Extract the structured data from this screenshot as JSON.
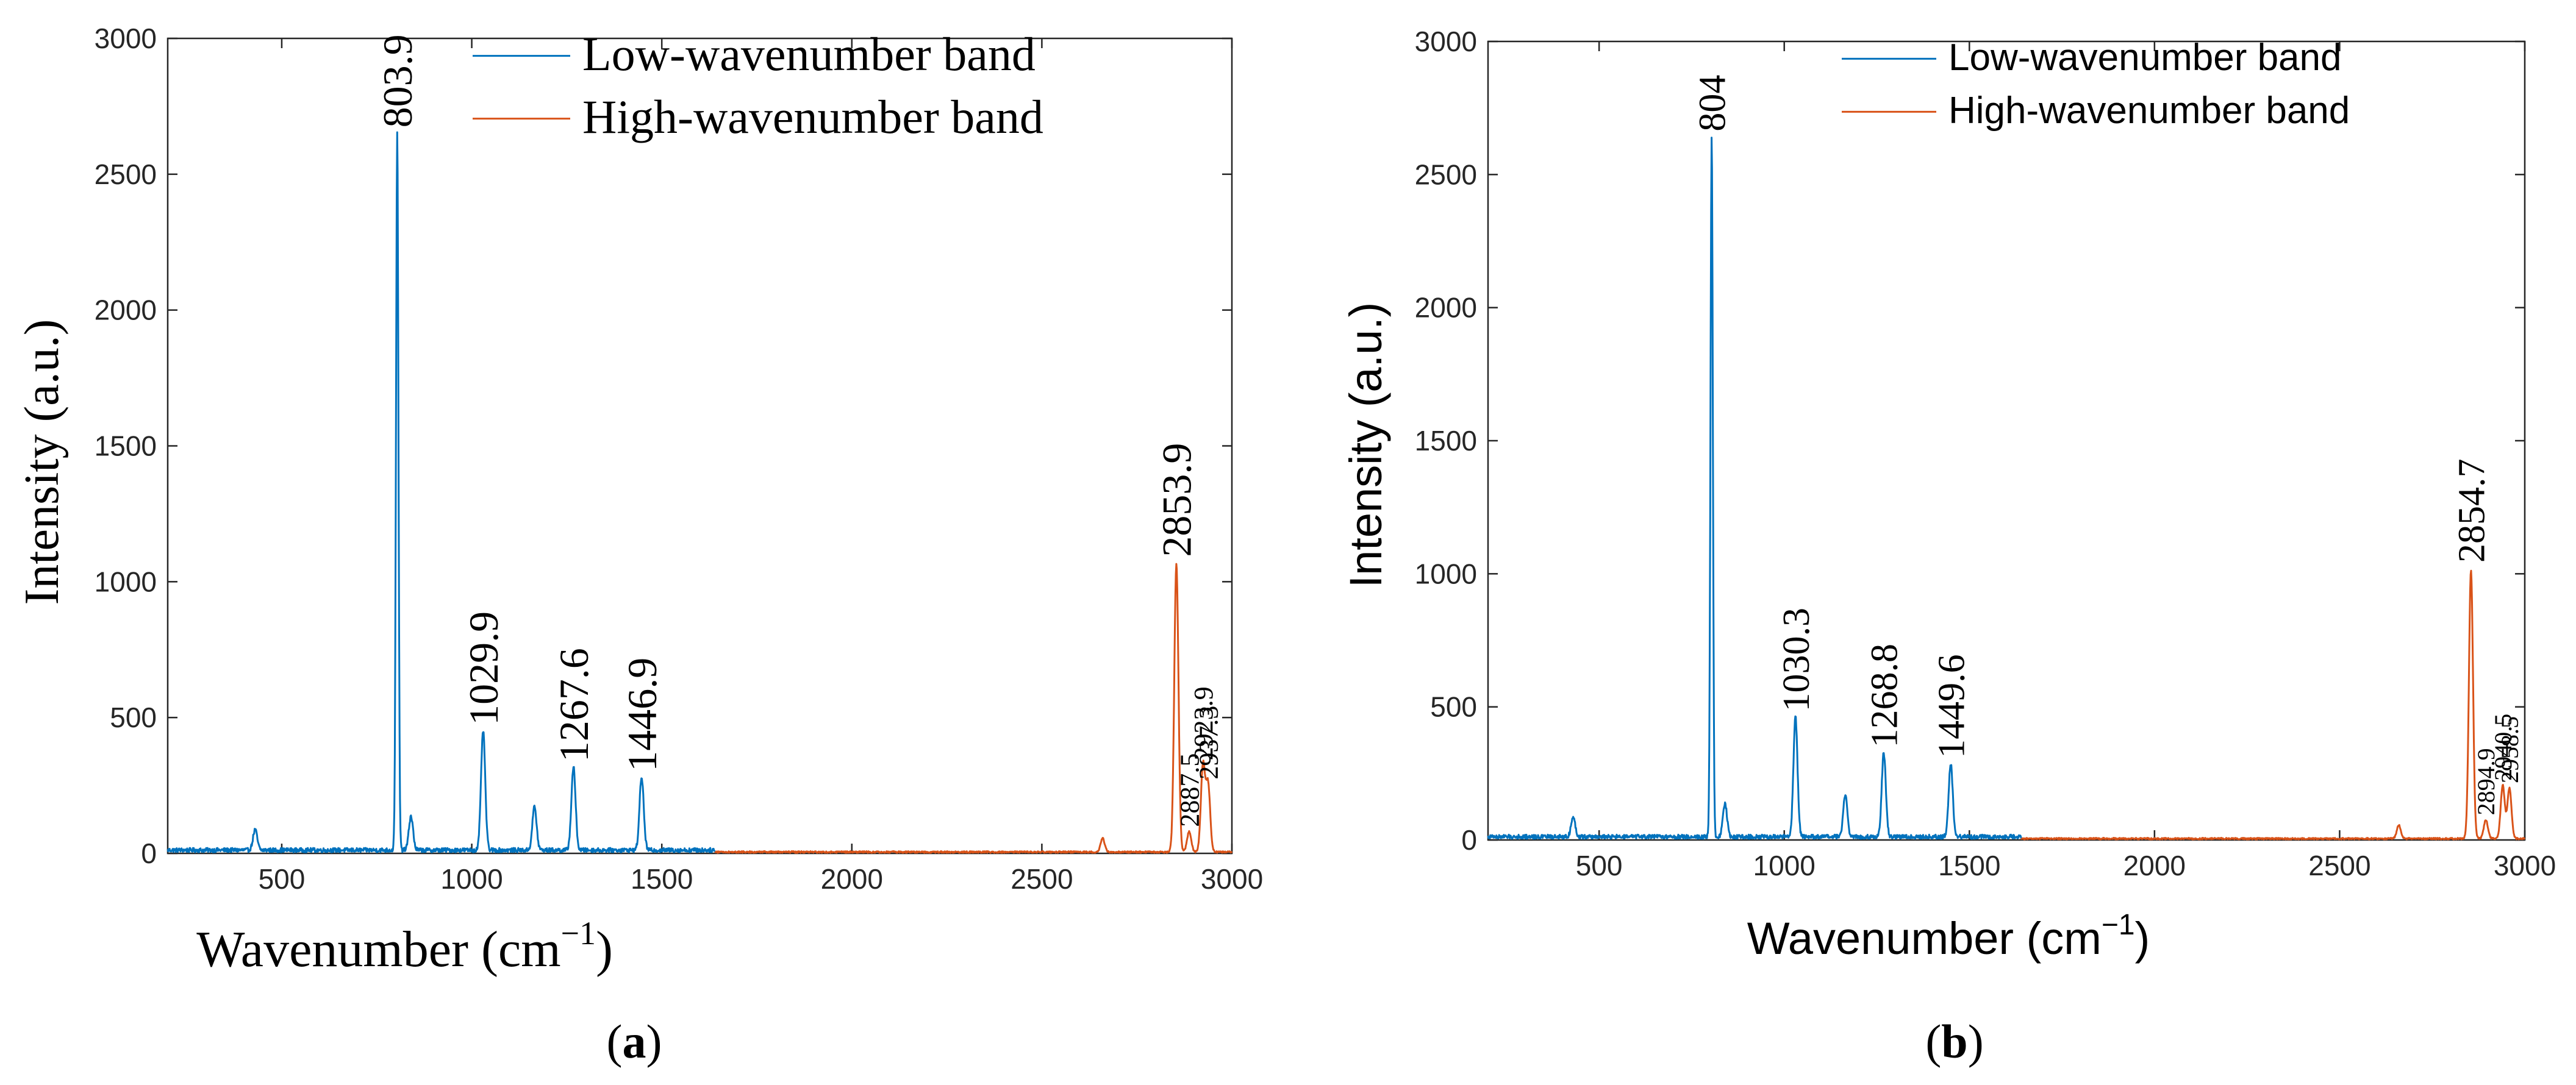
{
  "figure": {
    "panels": [
      {
        "label_open": "(",
        "label_letter": "a",
        "label_close": ")"
      },
      {
        "label_open": "(",
        "label_letter": "b",
        "label_close": ")"
      }
    ]
  },
  "colors": {
    "low_band": "#0072BD",
    "high_band": "#D95319",
    "axis": "#262626"
  },
  "chart_data": [
    {
      "type": "line",
      "panel": "a",
      "title": "",
      "xlabel_main": "Wavenumber (cm",
      "xlabel_sup": "−1",
      "xlabel_close": ")",
      "ylabel": "Intensity (a.u.)",
      "xlim": [
        200,
        3000
      ],
      "ylim": [
        0,
        3000
      ],
      "xticks": [
        500,
        1000,
        1500,
        2000,
        2500,
        3000
      ],
      "yticks": [
        0,
        500,
        1000,
        1500,
        2000,
        2500,
        3000
      ],
      "legend_position": "top-right",
      "series": [
        {
          "name": "Low-wavenumber band",
          "range": [
            200,
            1640
          ],
          "baseline": 12,
          "peaks": [
            {
              "x": 430,
              "y": 75
            },
            {
              "x": 803.9,
              "y": 2640
            },
            {
              "x": 840,
              "y": 125
            },
            {
              "x": 1029.9,
              "y": 440
            },
            {
              "x": 1165,
              "y": 160
            },
            {
              "x": 1267.6,
              "y": 305
            },
            {
              "x": 1446.9,
              "y": 270
            }
          ]
        },
        {
          "name": "High-wavenumber band",
          "range": [
            1640,
            3000
          ],
          "baseline": 5,
          "peaks": [
            {
              "x": 2660,
              "y": 50
            },
            {
              "x": 2853.9,
              "y": 1060
            },
            {
              "x": 2887.5,
              "y": 75
            },
            {
              "x": 2923.9,
              "y": 320
            },
            {
              "x": 2937.3,
              "y": 250
            }
          ]
        }
      ],
      "annotations": [
        {
          "x": 803.9,
          "y": 2640,
          "text": "803.9",
          "size": "large"
        },
        {
          "x": 1029.9,
          "y": 440,
          "text": "1029.9",
          "size": "large"
        },
        {
          "x": 1267.6,
          "y": 305,
          "text": "1267.6",
          "size": "large"
        },
        {
          "x": 1446.9,
          "y": 270,
          "text": "1446.9",
          "size": "large"
        },
        {
          "x": 2853.9,
          "y": 1060,
          "text": "2853.9",
          "size": "large"
        },
        {
          "x": 2887.5,
          "y": 75,
          "text": "2887.5",
          "size": "small"
        },
        {
          "x": 2923.9,
          "y": 320,
          "text": "2923.9",
          "size": "small"
        },
        {
          "x": 2937.3,
          "y": 250,
          "text": "2937.3",
          "size": "small"
        }
      ]
    },
    {
      "type": "line",
      "panel": "b",
      "title": "",
      "xlabel_main": "Wavenumber (cm",
      "xlabel_sup": "−1",
      "xlabel_close": ")",
      "ylabel": "Intensity (a.u.)",
      "xlim": [
        200,
        3000
      ],
      "ylim": [
        0,
        3000
      ],
      "xticks": [
        500,
        1000,
        1500,
        2000,
        2500,
        3000
      ],
      "yticks": [
        0,
        500,
        1000,
        1500,
        2000,
        2500,
        3000
      ],
      "legend_position": "top-right",
      "series": [
        {
          "name": "Low-wavenumber band",
          "range": [
            200,
            1640
          ],
          "baseline": 12,
          "peaks": [
            {
              "x": 430,
              "y": 75
            },
            {
              "x": 804,
              "y": 2630
            },
            {
              "x": 840,
              "y": 125
            },
            {
              "x": 1030.3,
              "y": 450
            },
            {
              "x": 1165,
              "y": 160
            },
            {
              "x": 1268.8,
              "y": 315
            },
            {
              "x": 1449.6,
              "y": 275
            }
          ]
        },
        {
          "name": "High-wavenumber band",
          "range": [
            1640,
            3000
          ],
          "baseline": 5,
          "peaks": [
            {
              "x": 2660,
              "y": 50
            },
            {
              "x": 2854.7,
              "y": 1010
            },
            {
              "x": 2894.9,
              "y": 70
            },
            {
              "x": 2940.5,
              "y": 200
            },
            {
              "x": 2958.5,
              "y": 190
            }
          ]
        }
      ],
      "annotations": [
        {
          "x": 804,
          "y": 2630,
          "text": "804",
          "size": "large"
        },
        {
          "x": 1030.3,
          "y": 450,
          "text": "1030.3",
          "size": "large"
        },
        {
          "x": 1268.8,
          "y": 315,
          "text": "1268.8",
          "size": "large"
        },
        {
          "x": 1449.6,
          "y": 275,
          "text": "1449.6",
          "size": "large"
        },
        {
          "x": 2854.7,
          "y": 1010,
          "text": "2854.7",
          "size": "large"
        },
        {
          "x": 2894.9,
          "y": 70,
          "text": "2894.9",
          "size": "small"
        },
        {
          "x": 2940.5,
          "y": 200,
          "text": "2940.5",
          "size": "small"
        },
        {
          "x": 2958.5,
          "y": 190,
          "text": "2958.5",
          "size": "small"
        }
      ]
    }
  ]
}
